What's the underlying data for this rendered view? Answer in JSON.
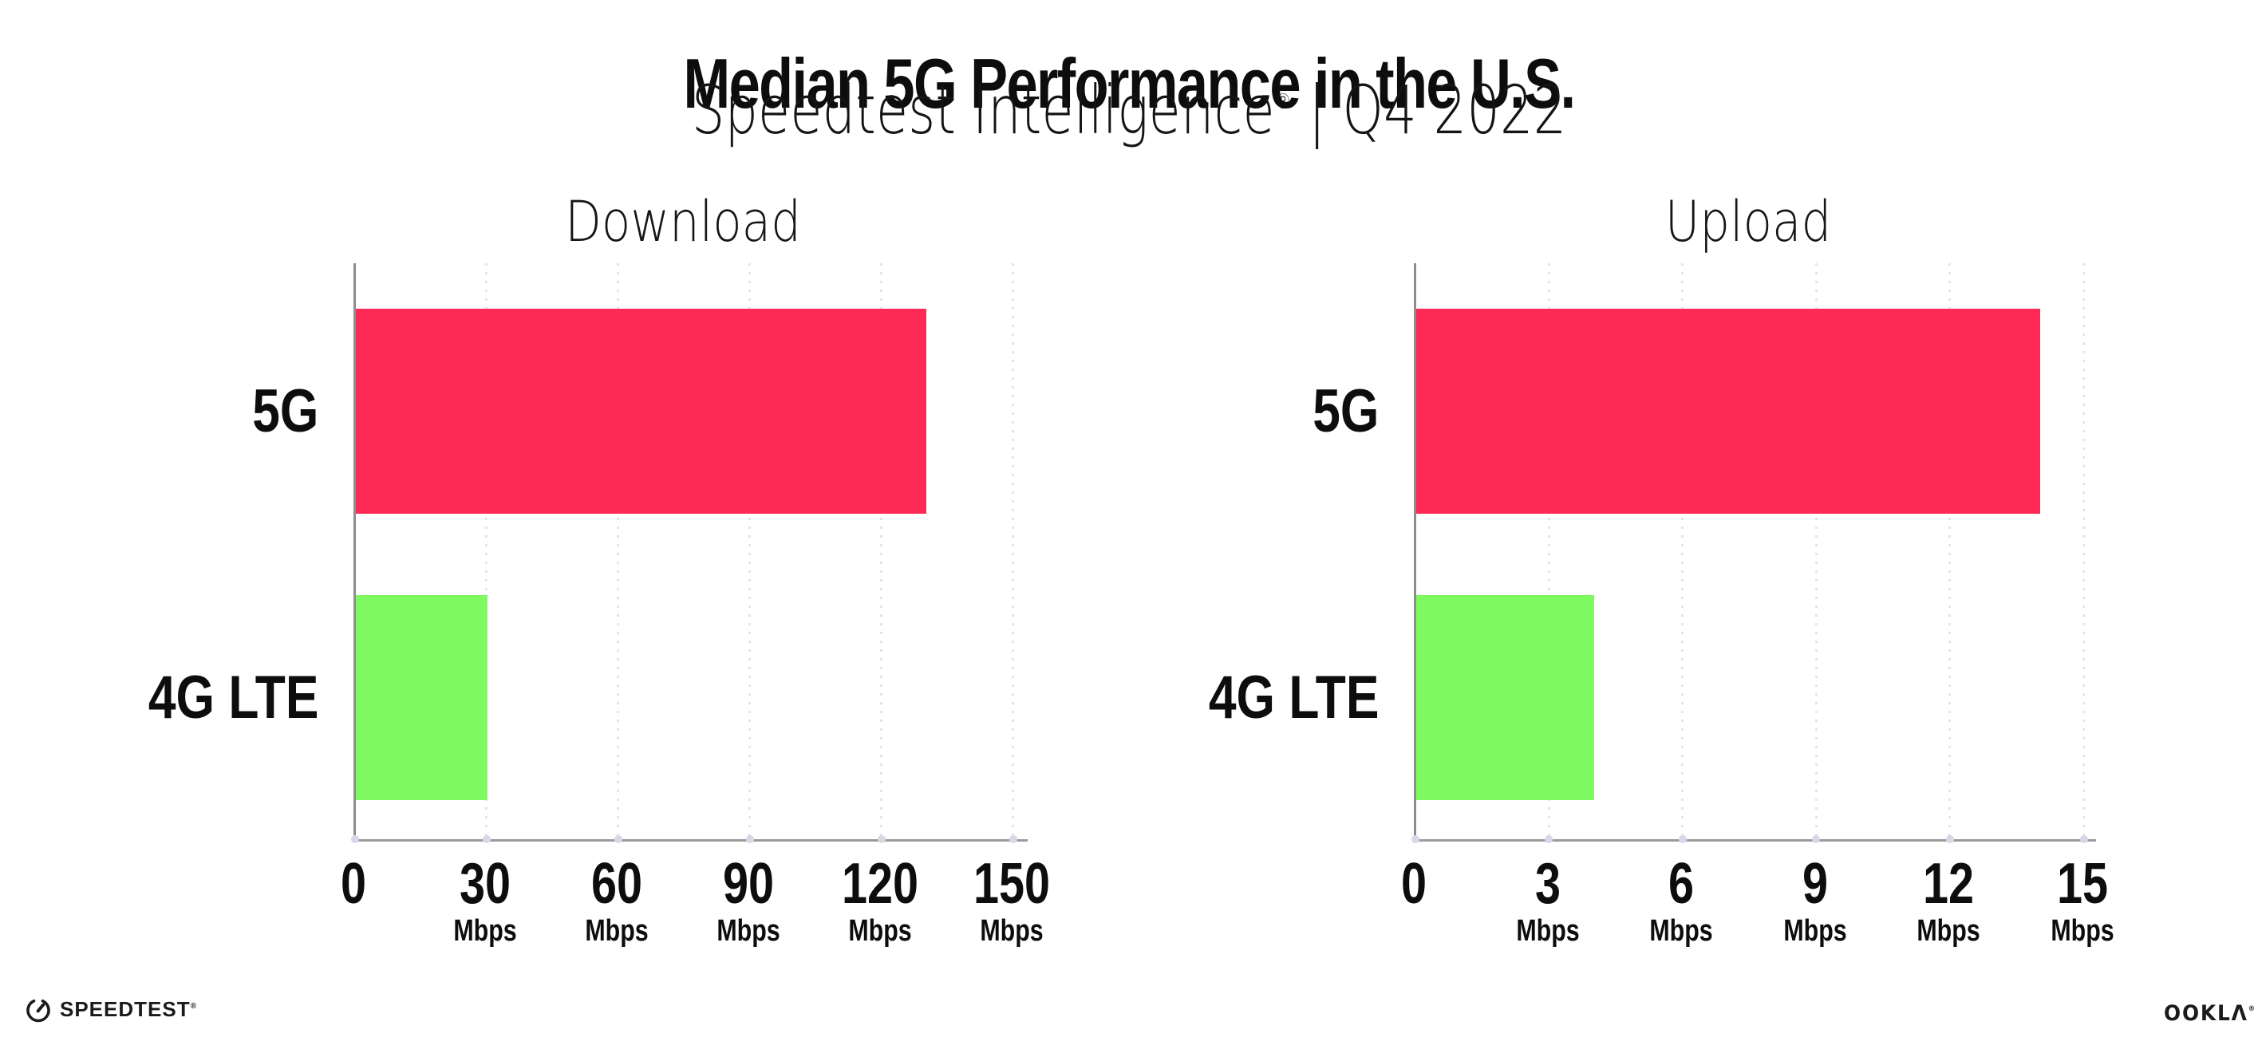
{
  "header": {
    "title": "Median 5G Performance in the U.S.",
    "subtitle": {
      "brand": "Speedtest Intelligence",
      "registered": "®",
      "rest": " | Q4 2022"
    }
  },
  "colors": {
    "bar_5g": "#fd2a55",
    "bar_4g_lte": "#7ef95f",
    "axis": "#8d8d8d",
    "gridline": "#e3e3ed",
    "tick_dot": "#d7d7e6",
    "text": "#0d0d0d"
  },
  "chart_data": [
    {
      "type": "bar",
      "orientation": "horizontal",
      "title": "Download",
      "categories": [
        "5G",
        "4G LTE"
      ],
      "values": [
        130,
        30
      ],
      "unit": "Mbps",
      "xlim": [
        0,
        150
      ],
      "xticks": [
        0,
        30,
        60,
        90,
        120,
        150
      ],
      "bar_colors": [
        "#fd2a55",
        "#7ef95f"
      ],
      "grid": "dotted-vertical",
      "legend": "none"
    },
    {
      "type": "bar",
      "orientation": "horizontal",
      "title": "Upload",
      "categories": [
        "5G",
        "4G LTE"
      ],
      "values": [
        14,
        4
      ],
      "unit": "Mbps",
      "xlim": [
        0,
        15
      ],
      "xticks": [
        0,
        3,
        6,
        9,
        12,
        15
      ],
      "bar_colors": [
        "#fd2a55",
        "#7ef95f"
      ],
      "grid": "dotted-vertical",
      "legend": "none"
    }
  ],
  "footer": {
    "speedtest_label": "SPEEDTEST",
    "speedtest_mark": "®",
    "ookla_label": "OOKLA",
    "ookla_mark": "®"
  }
}
